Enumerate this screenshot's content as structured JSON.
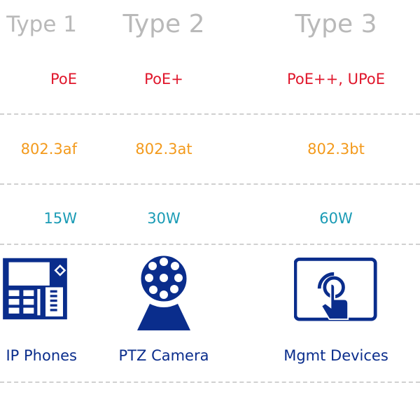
{
  "columns": [
    {
      "title": "Type 1",
      "poe": "PoE",
      "standard": "802.3af",
      "power": "15W",
      "device": "IP Phones",
      "icon": "ip-phone-icon"
    },
    {
      "title": "Type 2",
      "poe": "PoE+",
      "standard": "802.3at",
      "power": "30W",
      "device": "PTZ Camera",
      "icon": "ptz-camera-icon"
    },
    {
      "title": "Type 3",
      "poe": "PoE++, UPoE",
      "standard": "802.3bt",
      "power": "60W",
      "device": "Mgmt Devices",
      "icon": "touch-screen-icon"
    }
  ],
  "colors": {
    "title": "#b9b9b9",
    "poe": "#e0162b",
    "standard": "#f39a1c",
    "power": "#1a9bb5",
    "device": "#0a2d8c"
  }
}
